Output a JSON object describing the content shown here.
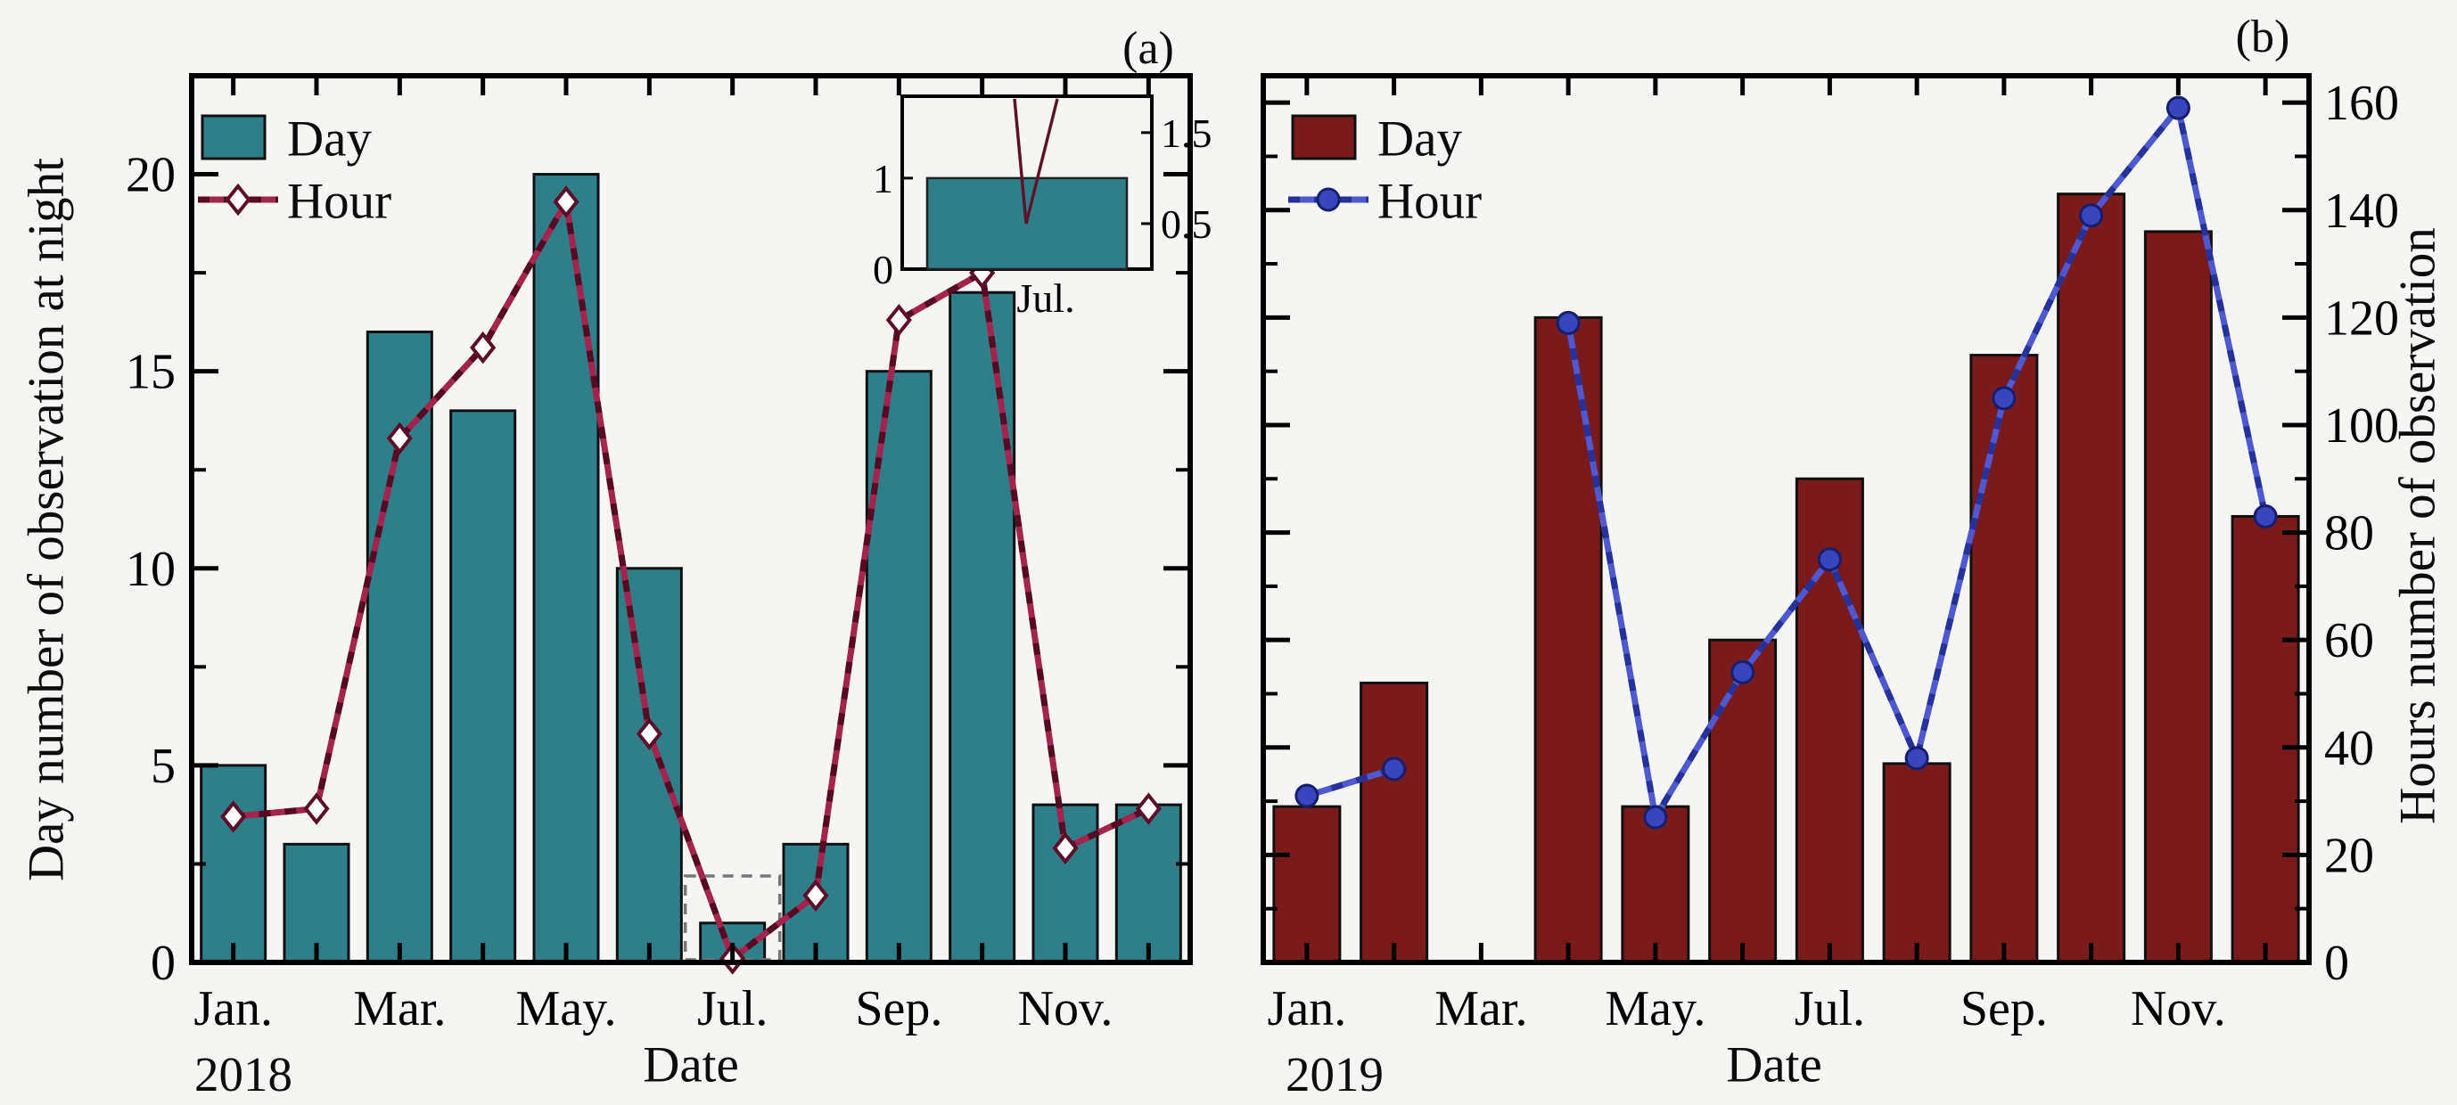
{
  "page": {
    "background": "#f5f5f3",
    "axis_color": "#000000"
  },
  "panels": [
    {
      "letter": "(a)",
      "year": "2018",
      "legend": {
        "bar_label": "Day",
        "line_label": "Hour"
      },
      "y_axis": {
        "title": "Day number of observation at night",
        "side": "left",
        "tick_labels": [
          "0",
          "5",
          "10",
          "15",
          "20"
        ],
        "tick_values": [
          0,
          5,
          10,
          15,
          20
        ],
        "minor_step": 2.5
      },
      "x_axis": {
        "title": "Date",
        "year": "2018",
        "month_tick_labels": [
          "Jan.",
          "Mar.",
          "May.",
          "Jul.",
          "Sep.",
          "Nov."
        ]
      },
      "chart_data": {
        "type": "bar+line",
        "categories": [
          "Jan",
          "Feb",
          "Mar",
          "Apr",
          "May",
          "Jun",
          "Jul",
          "Aug",
          "Sep",
          "Oct",
          "Nov",
          "Dec"
        ],
        "ylim": [
          0,
          22.5
        ],
        "series": [
          {
            "name": "Day",
            "type": "bar",
            "values": [
              5,
              3,
              16,
              14,
              20,
              10,
              1,
              3,
              15,
              17,
              4,
              4
            ],
            "color": "#2f7f8b",
            "edge_color": "#101010"
          },
          {
            "name": "Hour",
            "type": "line",
            "marker": "diamond",
            "values": [
              3.7,
              3.9,
              13.3,
              15.6,
              19.3,
              5.8,
              0.1,
              1.7,
              16.3,
              17.5,
              2.9,
              3.9
            ],
            "color": "#a3254d",
            "dash_color": "#48081c",
            "marker_fill": "#ffffff",
            "marker_edge": "#5c0e26"
          }
        ]
      },
      "inset": {
        "description": "zoom of July bar",
        "bar_value": 1,
        "line_dip_value": 0.5,
        "left_tick_labels": [
          "1",
          "0"
        ],
        "right_tick_labels": [
          "1.5",
          "0.5"
        ],
        "x_label": "Jul.",
        "ylim": [
          0,
          1.9
        ]
      }
    },
    {
      "letter": "(b)",
      "year": "2019",
      "legend": {
        "bar_label": "Day",
        "line_label": "Hour"
      },
      "y_axis": {
        "title": "Hours number of observation",
        "side": "right",
        "tick_labels": [
          "0",
          "20",
          "40",
          "60",
          "80",
          "100",
          "120",
          "140",
          "160"
        ],
        "tick_values": [
          0,
          20,
          40,
          60,
          80,
          100,
          120,
          140,
          160
        ],
        "minor_step": 10
      },
      "x_axis": {
        "title": "Date",
        "year": "2019",
        "month_tick_labels": [
          "Jan.",
          "Mar.",
          "May.",
          "Jul.",
          "Sep.",
          "Nov."
        ]
      },
      "chart_data": {
        "type": "bar+line",
        "categories": [
          "Jan",
          "Feb",
          "Mar",
          "Apr",
          "May",
          "Jun",
          "Jul",
          "Aug",
          "Sep",
          "Oct",
          "Nov",
          "Dec"
        ],
        "ylim": [
          0,
          165
        ],
        "series": [
          {
            "name": "Day",
            "type": "bar",
            "values": [
              29,
              52,
              null,
              120,
              29,
              60,
              90,
              37,
              113,
              143,
              136,
              83
            ],
            "color": "#791a1c",
            "edge_color": "#101010"
          },
          {
            "name": "Hour",
            "type": "line",
            "marker": "circle",
            "values": [
              31,
              36,
              null,
              119,
              27,
              54,
              75,
              38,
              105,
              139,
              159,
              83
            ],
            "color": "#5058d0",
            "dash_color": "#202a90",
            "marker_fill": "#3a44bc",
            "marker_edge": "#161e6e"
          }
        ]
      }
    }
  ]
}
